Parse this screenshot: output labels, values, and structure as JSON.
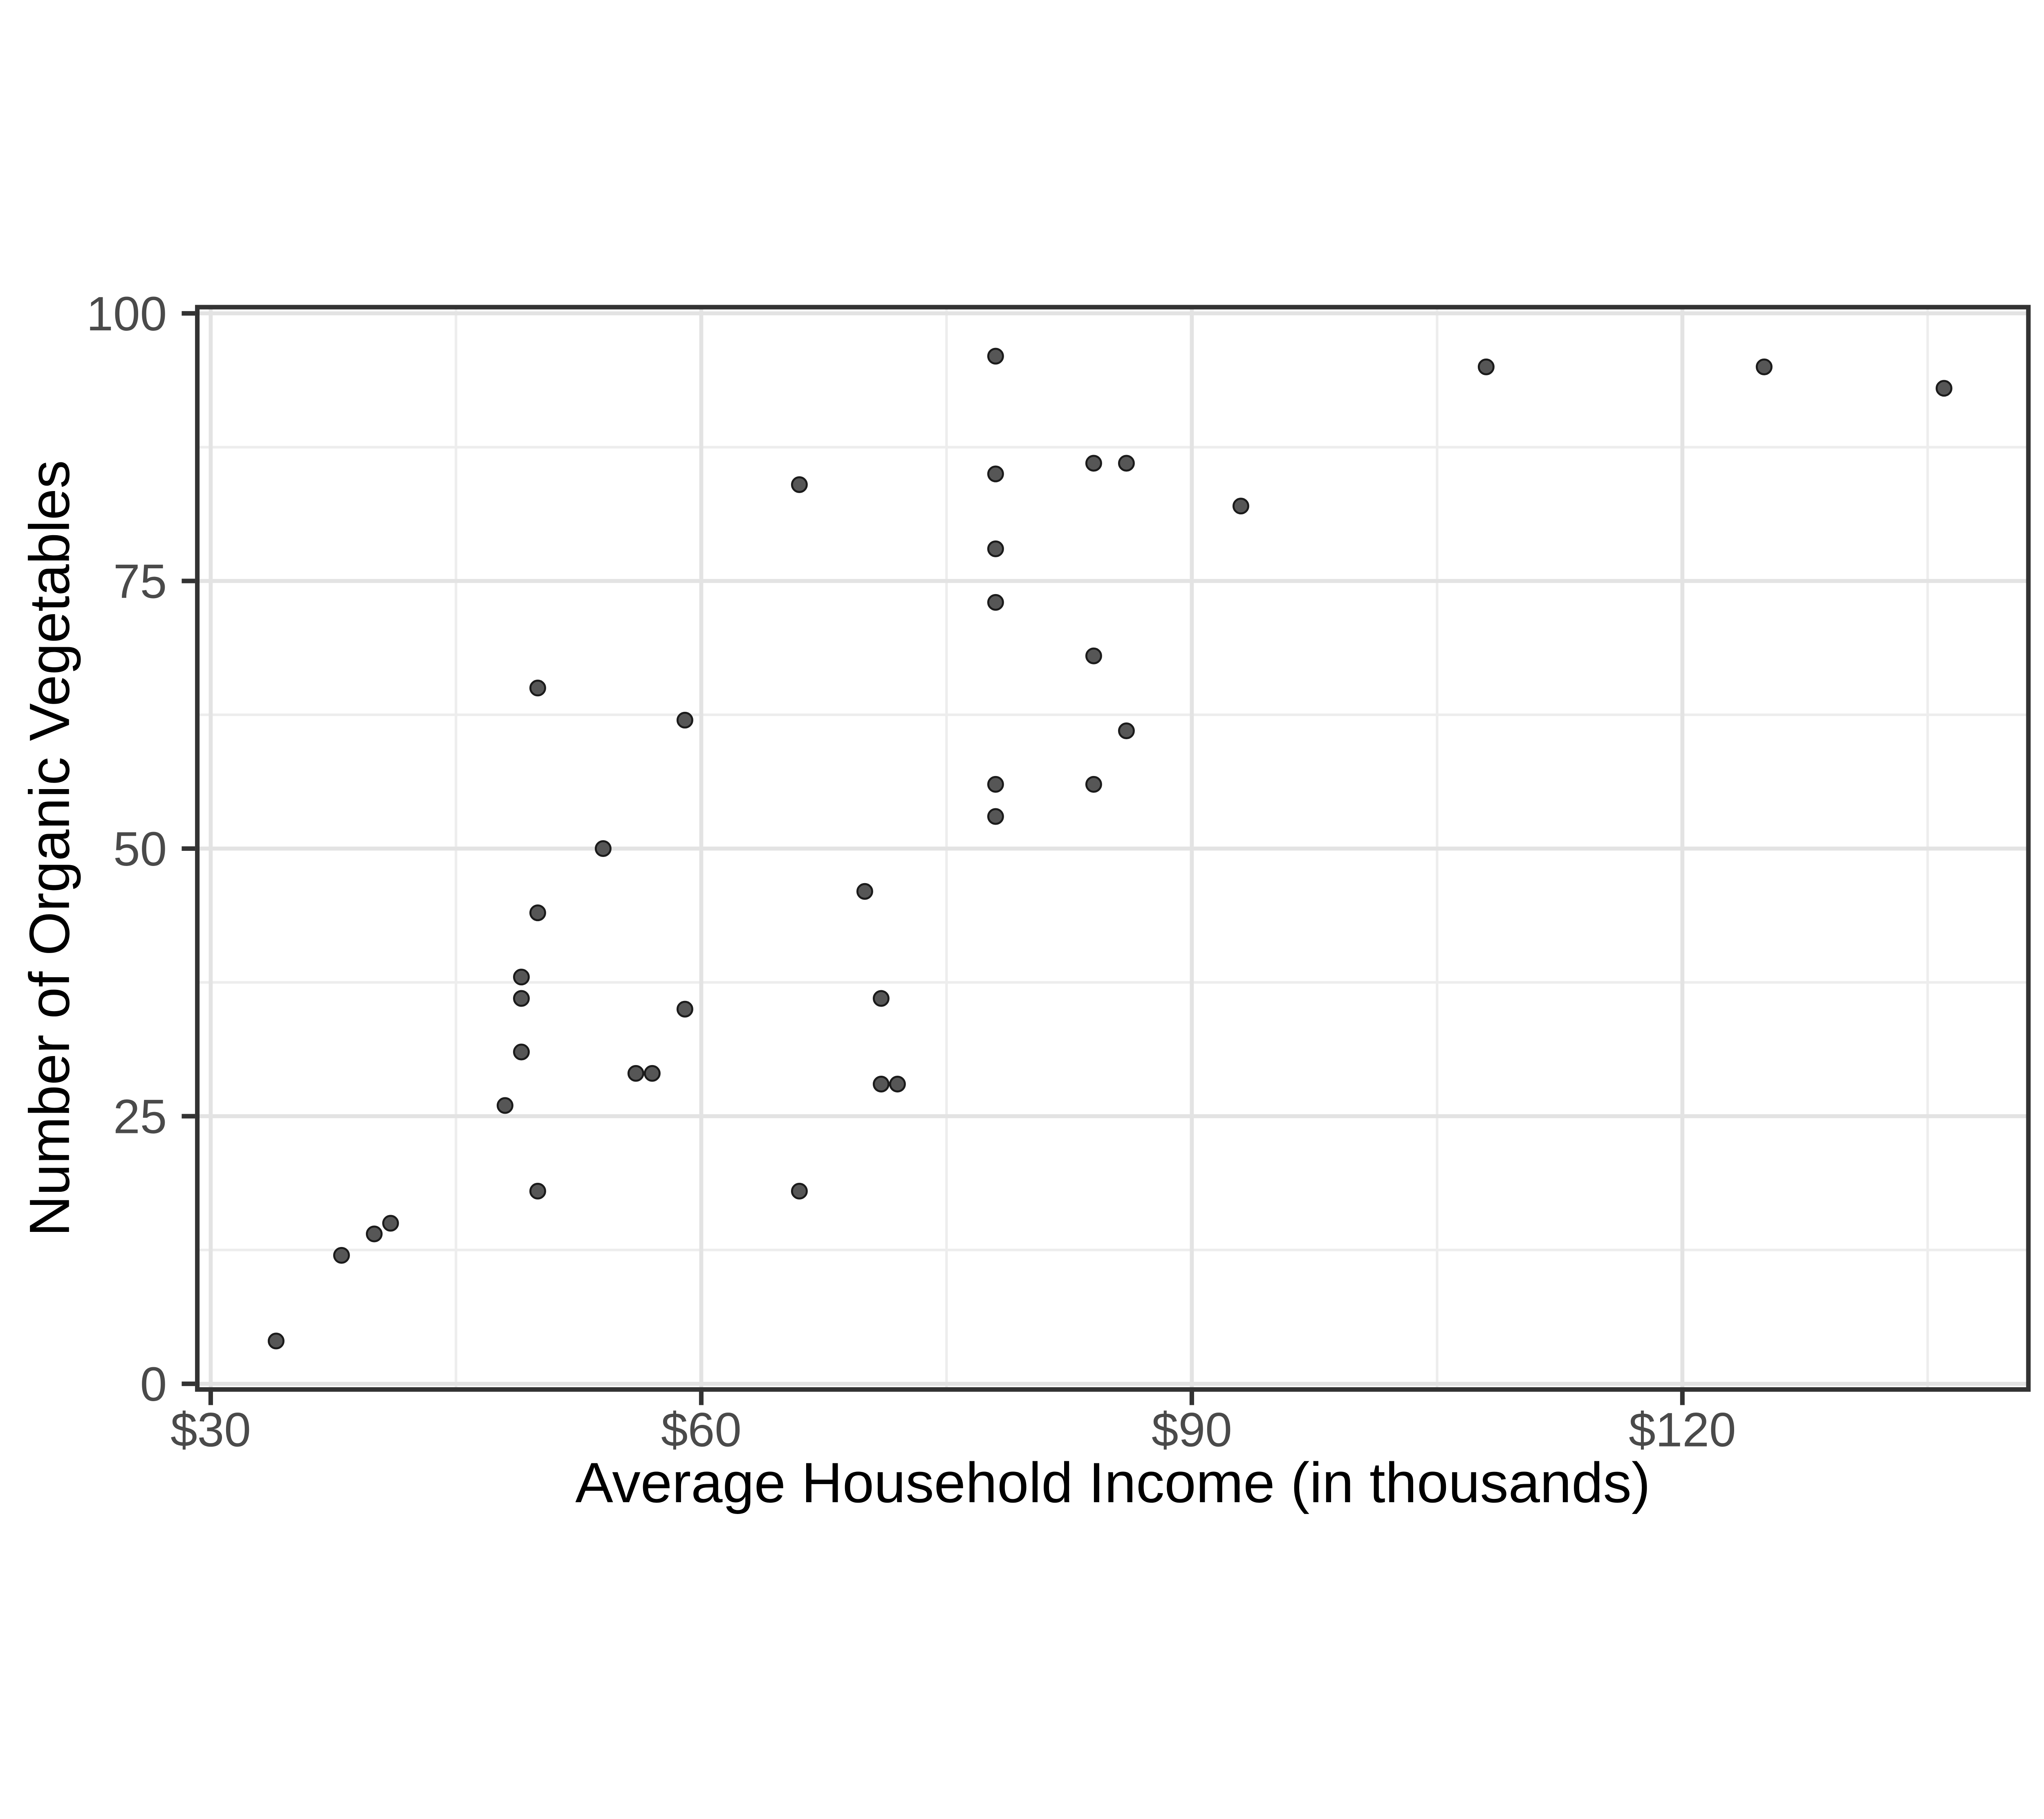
{
  "chart_data": {
    "type": "scatter",
    "title": "",
    "xlabel": "Average Household Income (in thousands)",
    "ylabel": "Number of Organic Vegetables",
    "x_ticks": [
      {
        "value": 30,
        "label": "$30"
      },
      {
        "value": 60,
        "label": "$60"
      },
      {
        "value": 90,
        "label": "$90"
      },
      {
        "value": 120,
        "label": "$120"
      }
    ],
    "y_ticks": [
      {
        "value": 0,
        "label": "0"
      },
      {
        "value": 25,
        "label": "25"
      },
      {
        "value": 50,
        "label": "50"
      },
      {
        "value": 75,
        "label": "75"
      },
      {
        "value": 100,
        "label": "100"
      }
    ],
    "x_minor_gridlines": [
      45,
      75,
      105,
      135
    ],
    "y_minor_gridlines": [
      12.5,
      37.5,
      62.5,
      87.5
    ],
    "xlim": [
      29.18,
      141.16
    ],
    "ylim": [
      -0.53,
      100.58
    ],
    "grid": true,
    "legend": false,
    "points": [
      {
        "x": 34,
        "y": 4
      },
      {
        "x": 38,
        "y": 12
      },
      {
        "x": 40,
        "y": 14
      },
      {
        "x": 41,
        "y": 15
      },
      {
        "x": 48,
        "y": 26
      },
      {
        "x": 49,
        "y": 31
      },
      {
        "x": 49,
        "y": 36
      },
      {
        "x": 49,
        "y": 38
      },
      {
        "x": 50,
        "y": 18
      },
      {
        "x": 50,
        "y": 44
      },
      {
        "x": 50,
        "y": 65
      },
      {
        "x": 54,
        "y": 50
      },
      {
        "x": 56,
        "y": 29
      },
      {
        "x": 57,
        "y": 29
      },
      {
        "x": 59,
        "y": 35
      },
      {
        "x": 59,
        "y": 62
      },
      {
        "x": 66,
        "y": 18
      },
      {
        "x": 66,
        "y": 84
      },
      {
        "x": 70,
        "y": 46
      },
      {
        "x": 71,
        "y": 28
      },
      {
        "x": 71,
        "y": 36
      },
      {
        "x": 72,
        "y": 28
      },
      {
        "x": 78,
        "y": 53
      },
      {
        "x": 78,
        "y": 56
      },
      {
        "x": 78,
        "y": 73
      },
      {
        "x": 78,
        "y": 78
      },
      {
        "x": 78,
        "y": 85
      },
      {
        "x": 78,
        "y": 96
      },
      {
        "x": 84,
        "y": 56
      },
      {
        "x": 84,
        "y": 68
      },
      {
        "x": 84,
        "y": 86
      },
      {
        "x": 86,
        "y": 61
      },
      {
        "x": 86,
        "y": 86
      },
      {
        "x": 93,
        "y": 82
      },
      {
        "x": 108,
        "y": 95
      },
      {
        "x": 125,
        "y": 95
      },
      {
        "x": 136,
        "y": 93
      }
    ]
  },
  "style": {
    "background": "#ffffff",
    "panel_background": "#ffffff",
    "panel_border": "#333333",
    "grid_major": "#e3e3e3",
    "grid_minor": "#ededed",
    "tick_mark": "#333333",
    "tick_label": "#4a4a4a",
    "axis_title": "#000000",
    "point_fill": "#565656",
    "point_stroke": "#1b1b1b"
  }
}
